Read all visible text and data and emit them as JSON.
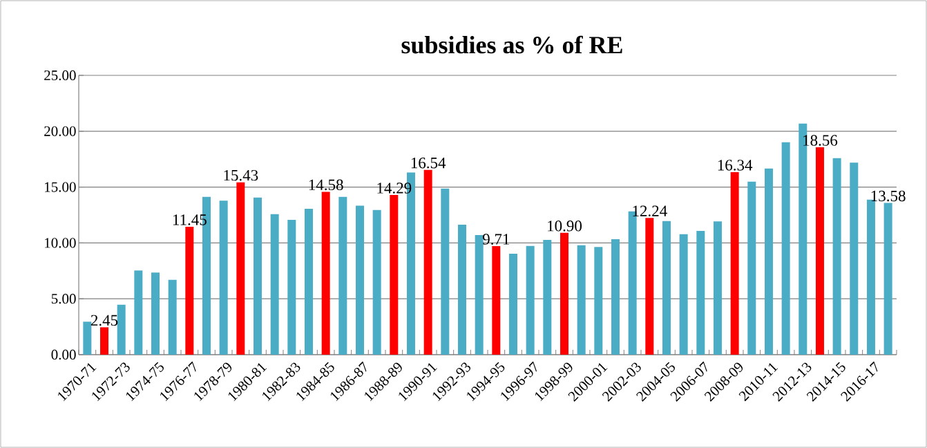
{
  "chart_data": {
    "type": "bar",
    "title": "subsidies as % of RE",
    "categories": [
      "1970-71",
      null,
      "1972-73",
      null,
      "1974-75",
      null,
      "1976-77",
      null,
      "1978-79",
      null,
      "1980-81",
      null,
      "1982-83",
      null,
      "1984-85",
      null,
      "1986-87",
      null,
      "1988-89",
      null,
      "1990-91",
      null,
      "1992-93",
      null,
      "1994-95",
      null,
      "1996-97",
      null,
      "1998-99",
      null,
      "2000-01",
      null,
      "2002-03",
      null,
      "2004-05",
      null,
      "2006-07",
      null,
      "2008-09",
      null,
      "2010-11",
      null,
      "2012-13",
      null,
      "2014-15",
      null,
      "2016-17",
      null
    ],
    "values": [
      2.95,
      2.45,
      4.47,
      7.53,
      7.34,
      6.7,
      11.45,
      14.12,
      13.79,
      15.43,
      14.06,
      12.58,
      12.06,
      13.05,
      14.58,
      14.12,
      13.34,
      12.95,
      14.29,
      16.3,
      16.54,
      14.87,
      11.63,
      10.7,
      9.71,
      9.03,
      9.73,
      10.27,
      10.9,
      9.79,
      9.63,
      10.33,
      12.82,
      12.24,
      11.96,
      10.78,
      11.07,
      11.92,
      16.34,
      15.48,
      16.66,
      19.01,
      20.68,
      18.56,
      17.59,
      17.18,
      13.88,
      13.58
    ],
    "value_labels": [
      null,
      "2.45",
      null,
      null,
      null,
      null,
      "11.45",
      null,
      null,
      "15.43",
      null,
      null,
      null,
      null,
      "14.58",
      null,
      null,
      null,
      "14.29",
      null,
      "16.54",
      null,
      null,
      null,
      "9.71",
      null,
      null,
      null,
      "10.90",
      null,
      null,
      null,
      null,
      "12.24",
      null,
      null,
      null,
      null,
      "16.34",
      null,
      null,
      null,
      null,
      "18.56",
      null,
      null,
      null,
      "13.58"
    ],
    "colors": [
      "#4bacc6",
      "#ff0000",
      "#4bacc6",
      "#4bacc6",
      "#4bacc6",
      "#4bacc6",
      "#ff0000",
      "#4bacc6",
      "#4bacc6",
      "#ff0000",
      "#4bacc6",
      "#4bacc6",
      "#4bacc6",
      "#4bacc6",
      "#ff0000",
      "#4bacc6",
      "#4bacc6",
      "#4bacc6",
      "#ff0000",
      "#4bacc6",
      "#ff0000",
      "#4bacc6",
      "#4bacc6",
      "#4bacc6",
      "#ff0000",
      "#4bacc6",
      "#4bacc6",
      "#4bacc6",
      "#ff0000",
      "#4bacc6",
      "#4bacc6",
      "#4bacc6",
      "#4bacc6",
      "#ff0000",
      "#4bacc6",
      "#4bacc6",
      "#4bacc6",
      "#4bacc6",
      "#ff0000",
      "#4bacc6",
      "#4bacc6",
      "#4bacc6",
      "#4bacc6",
      "#ff0000",
      "#4bacc6",
      "#4bacc6",
      "#4bacc6",
      "#4bacc6"
    ],
    "ylim": [
      0,
      25
    ],
    "yticks": [
      {
        "value": 0,
        "label": "0.00"
      },
      {
        "value": 5,
        "label": "5.00"
      },
      {
        "value": 10,
        "label": "10.00"
      },
      {
        "value": 15,
        "label": "15.00"
      },
      {
        "value": 20,
        "label": "20.00"
      },
      {
        "value": 25,
        "label": "25.00"
      }
    ],
    "grid": "y"
  }
}
